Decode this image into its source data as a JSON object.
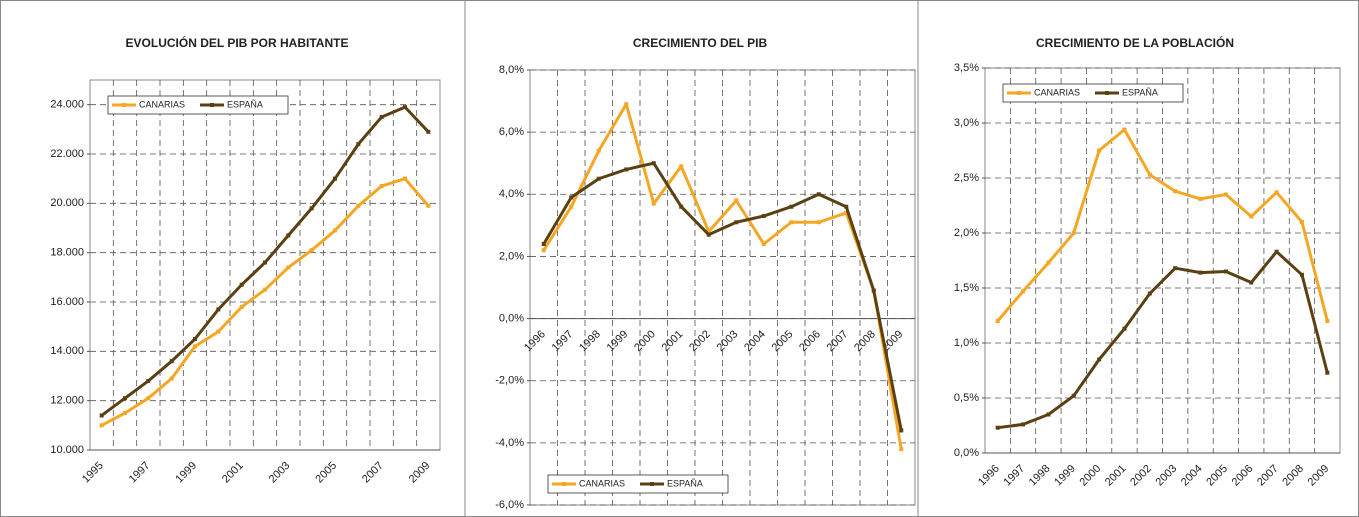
{
  "chart_data": [
    {
      "type": "line",
      "title": "EVOLUCIÓN DEL PIB POR HABITANTE",
      "categories": [
        "1995",
        null,
        "1997",
        null,
        "1999",
        null,
        "2001",
        null,
        "2003",
        null,
        "2005",
        null,
        "2007",
        null,
        "2009"
      ],
      "series": [
        {
          "name": "CANARIAS",
          "color": "#f5a623",
          "values": [
            11000,
            11500,
            12100,
            12900,
            14200,
            14800,
            15800,
            16500,
            17400,
            18100,
            18900,
            19900,
            20700,
            21000,
            19900
          ]
        },
        {
          "name": "ESPAÑA",
          "color": "#5a4013",
          "values": [
            11400,
            12100,
            12800,
            13600,
            14500,
            15700,
            16700,
            17600,
            18700,
            19800,
            21000,
            22400,
            23500,
            23900,
            22900
          ]
        }
      ],
      "ylim": [
        10000,
        25000
      ],
      "yticks": [
        {
          "value": 10000,
          "label": "10.000"
        },
        {
          "value": 12000,
          "label": "12.000"
        },
        {
          "value": 14000,
          "label": "14.000"
        },
        {
          "value": 16000,
          "label": "16.000"
        },
        {
          "value": 18000,
          "label": "18.000"
        },
        {
          "value": 20000,
          "label": "20.000"
        },
        {
          "value": 22000,
          "label": "22.000"
        },
        {
          "value": 24000,
          "label": "24.000"
        }
      ],
      "grid": true,
      "legend": "upper left"
    },
    {
      "type": "line",
      "title": "CRECIMIENTO DEL PIB",
      "categories": [
        "1996",
        "1997",
        "1998",
        "1999",
        "2000",
        "2001",
        "2002",
        "2003",
        "2004",
        "2005",
        "2006",
        "2007",
        "2008",
        "2009"
      ],
      "series": [
        {
          "name": "CANARIAS",
          "color": "#f5a623",
          "values": [
            2.2,
            3.6,
            5.4,
            6.9,
            3.7,
            4.9,
            2.8,
            3.8,
            2.4,
            3.1,
            3.1,
            3.4,
            0.9,
            -4.2
          ]
        },
        {
          "name": "ESPAÑA",
          "color": "#5a4013",
          "values": [
            2.4,
            3.9,
            4.5,
            4.8,
            5.0,
            3.6,
            2.7,
            3.1,
            3.3,
            3.6,
            4.0,
            3.6,
            0.9,
            -3.6
          ]
        }
      ],
      "ylim": [
        -6,
        8
      ],
      "yticks": [
        {
          "value": -6,
          "label": "-6,0%"
        },
        {
          "value": -4,
          "label": "-4,0%"
        },
        {
          "value": -2,
          "label": "-2,0%"
        },
        {
          "value": 0,
          "label": "0,0%"
        },
        {
          "value": 2,
          "label": "2,0%"
        },
        {
          "value": 4,
          "label": "4,0%"
        },
        {
          "value": 6,
          "label": "6,0%"
        },
        {
          "value": 8,
          "label": "8,0%"
        }
      ],
      "grid": true,
      "legend": "lower left"
    },
    {
      "type": "line",
      "title": "CRECIMIENTO DE LA POBLACIÓN",
      "categories": [
        "1996",
        "1997",
        "1998",
        "1999",
        "2000",
        "2001",
        "2002",
        "2003",
        "2004",
        "2005",
        "2006",
        "2007",
        "2008",
        "2009"
      ],
      "series": [
        {
          "name": "CANARIAS",
          "color": "#f5a623",
          "values": [
            1.2,
            1.47,
            1.73,
            2.0,
            2.75,
            2.94,
            2.53,
            2.38,
            2.31,
            2.35,
            2.15,
            2.37,
            2.1,
            1.2
          ]
        },
        {
          "name": "ESPAÑA",
          "color": "#5a4013",
          "values": [
            0.23,
            0.26,
            0.35,
            0.52,
            0.85,
            1.13,
            1.45,
            1.68,
            1.64,
            1.65,
            1.55,
            1.83,
            1.62,
            0.73
          ]
        }
      ],
      "ylim": [
        0,
        3.5
      ],
      "yticks": [
        {
          "value": 0,
          "label": "0,0%"
        },
        {
          "value": 0.5,
          "label": "0,5%"
        },
        {
          "value": 1,
          "label": "1,0%"
        },
        {
          "value": 1.5,
          "label": "1,5%"
        },
        {
          "value": 2,
          "label": "2,0%"
        },
        {
          "value": 2.5,
          "label": "2,5%"
        },
        {
          "value": 3,
          "label": "3,0%"
        },
        {
          "value": 3.5,
          "label": "3,5%"
        }
      ],
      "grid": true,
      "legend": "upper left"
    }
  ]
}
